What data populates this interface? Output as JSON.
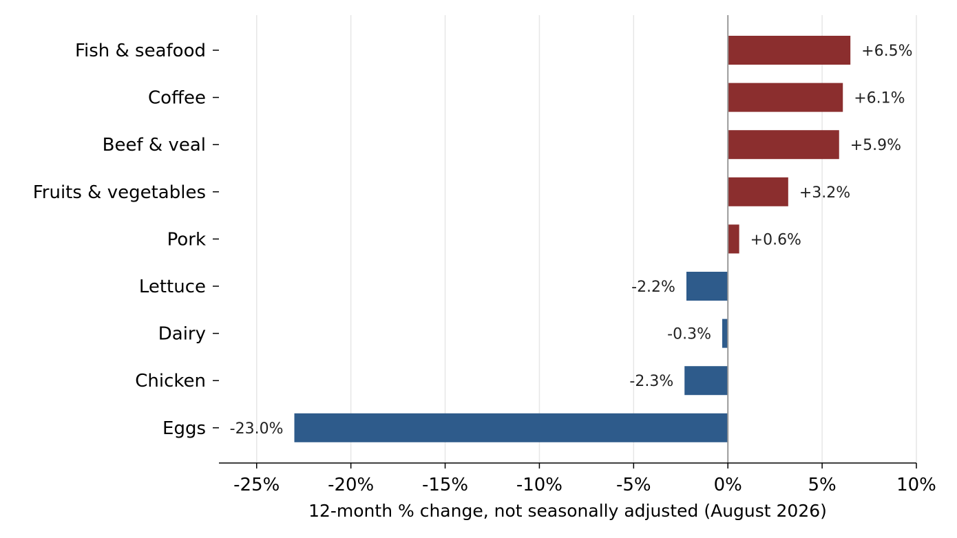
{
  "chart_data": {
    "type": "bar",
    "orientation": "horizontal",
    "categories": [
      "Fish & seafood",
      "Coffee",
      "Beef & veal",
      "Fruits & vegetables",
      "Pork",
      "Lettuce",
      "Dairy",
      "Chicken",
      "Eggs"
    ],
    "values": [
      6.5,
      6.1,
      5.9,
      3.2,
      0.6,
      -2.2,
      -0.3,
      -2.3,
      -23.0
    ],
    "value_labels": [
      "+6.5%",
      "+6.1%",
      "+5.9%",
      "+3.2%",
      "+0.6%",
      "-2.2%",
      "-0.3%",
      "-2.3%",
      "-23.0%"
    ],
    "xlabel": "12-month % change, not seasonally adjusted (August 2026)",
    "ylabel": "",
    "xlim": [
      -27,
      10
    ],
    "x_ticks": [
      -25,
      -20,
      -15,
      -10,
      -5,
      0,
      5,
      10
    ],
    "x_tick_labels": [
      "-25%",
      "-20%",
      "-15%",
      "-10%",
      "-5%",
      "0%",
      "5%",
      "10%"
    ],
    "grid": "vertical",
    "colors": {
      "positive": "#8b2e2e",
      "negative": "#2e5b8b",
      "zero_line": "#999999",
      "grid": "#e6e6e6",
      "axis": "#000000"
    }
  }
}
